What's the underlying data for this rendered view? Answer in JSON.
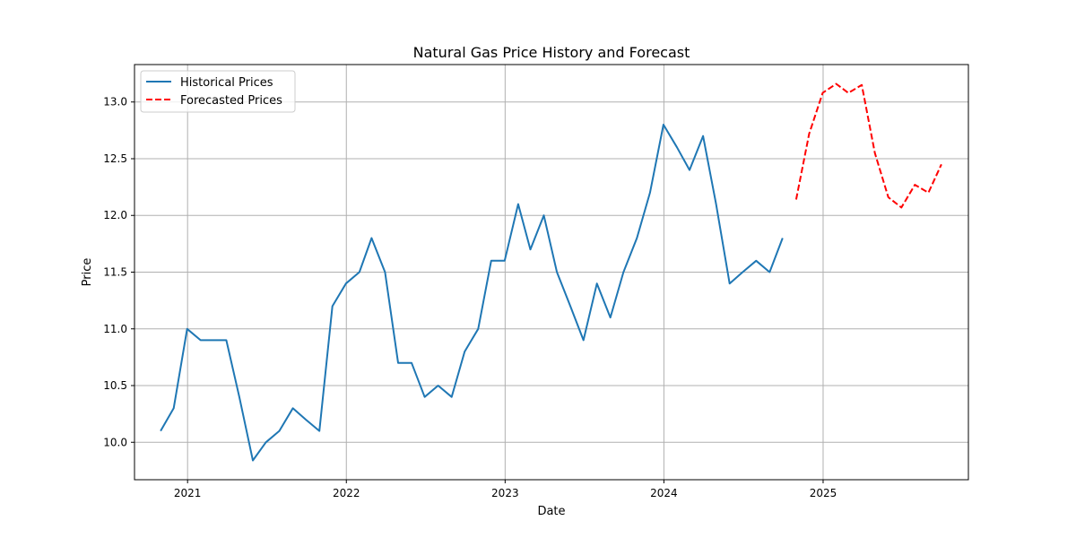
{
  "chart_data": {
    "type": "line",
    "title": "Natural Gas Price History and Forecast",
    "xlabel": "Date",
    "ylabel": "Price",
    "xlim": [
      "2020-09-01",
      "2025-12-01"
    ],
    "ylim": [
      9.67,
      13.33
    ],
    "x_ticks": [
      "2021",
      "2022",
      "2023",
      "2024",
      "2025"
    ],
    "y_ticks": [
      "10.0",
      "10.5",
      "11.0",
      "11.5",
      "12.0",
      "12.5",
      "13.0"
    ],
    "grid": true,
    "legend_position": "upper-left",
    "series": [
      {
        "name": "Historical Prices",
        "color": "#1f77b4",
        "line_style": "solid",
        "x": [
          "2020-10-31",
          "2020-11-30",
          "2020-12-31",
          "2021-01-31",
          "2021-02-28",
          "2021-03-31",
          "2021-04-30",
          "2021-05-31",
          "2021-06-30",
          "2021-07-31",
          "2021-08-31",
          "2021-09-30",
          "2021-10-31",
          "2021-11-30",
          "2021-12-31",
          "2022-01-31",
          "2022-02-28",
          "2022-03-31",
          "2022-04-30",
          "2022-05-31",
          "2022-06-30",
          "2022-07-31",
          "2022-08-31",
          "2022-09-30",
          "2022-10-31",
          "2022-11-30",
          "2022-12-31",
          "2023-01-31",
          "2023-02-28",
          "2023-03-31",
          "2023-04-30",
          "2023-05-31",
          "2023-06-30",
          "2023-07-31",
          "2023-08-31",
          "2023-09-30",
          "2023-10-31",
          "2023-11-30",
          "2023-12-31",
          "2024-01-31",
          "2024-02-29",
          "2024-03-31",
          "2024-04-30",
          "2024-05-31",
          "2024-06-30",
          "2024-07-31",
          "2024-08-31",
          "2024-09-30"
        ],
        "y": [
          10.1,
          10.3,
          11.0,
          10.9,
          10.9,
          10.9,
          10.4,
          9.84,
          10.0,
          10.1,
          10.3,
          10.2,
          10.1,
          11.2,
          11.4,
          11.5,
          11.8,
          11.5,
          10.7,
          10.7,
          10.4,
          10.5,
          10.4,
          10.8,
          11.0,
          11.6,
          11.6,
          12.1,
          11.7,
          12.0,
          11.5,
          11.2,
          10.9,
          11.4,
          11.1,
          11.5,
          11.8,
          12.2,
          12.8,
          12.6,
          12.4,
          12.7,
          12.1,
          11.4,
          11.5,
          11.6,
          11.5,
          11.8
        ]
      },
      {
        "name": "Forecasted Prices",
        "color": "#ff0000",
        "line_style": "dashed",
        "x": [
          "2024-10-31",
          "2024-11-30",
          "2024-12-31",
          "2025-01-31",
          "2025-02-28",
          "2025-03-31",
          "2025-04-30",
          "2025-05-31",
          "2025-06-30",
          "2025-07-31",
          "2025-08-31",
          "2025-09-30"
        ],
        "y": [
          12.14,
          12.72,
          13.08,
          13.16,
          13.08,
          13.15,
          12.55,
          12.16,
          12.07,
          12.27,
          12.2,
          12.45
        ]
      }
    ]
  }
}
